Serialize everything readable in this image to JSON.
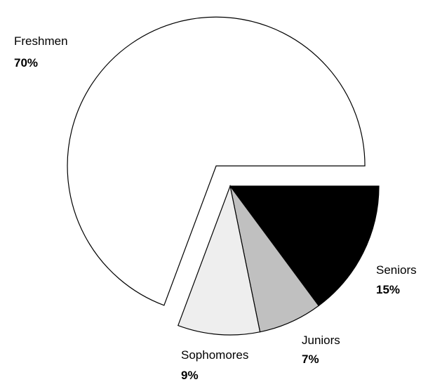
{
  "chart_data": {
    "type": "pie",
    "title": "",
    "exploded": [
      "Freshmen"
    ],
    "slices": [
      {
        "name": "Seniors",
        "label": "15%",
        "value": 15,
        "color": "#000000"
      },
      {
        "name": "Juniors",
        "label": "7%",
        "value": 7,
        "color": "#c0c0c0"
      },
      {
        "name": "Sophomores",
        "label": "9%",
        "value": 9,
        "color": "#eeeeee"
      },
      {
        "name": "Freshmen",
        "label": "70%",
        "value": 70,
        "color": "#ffffff"
      }
    ]
  }
}
